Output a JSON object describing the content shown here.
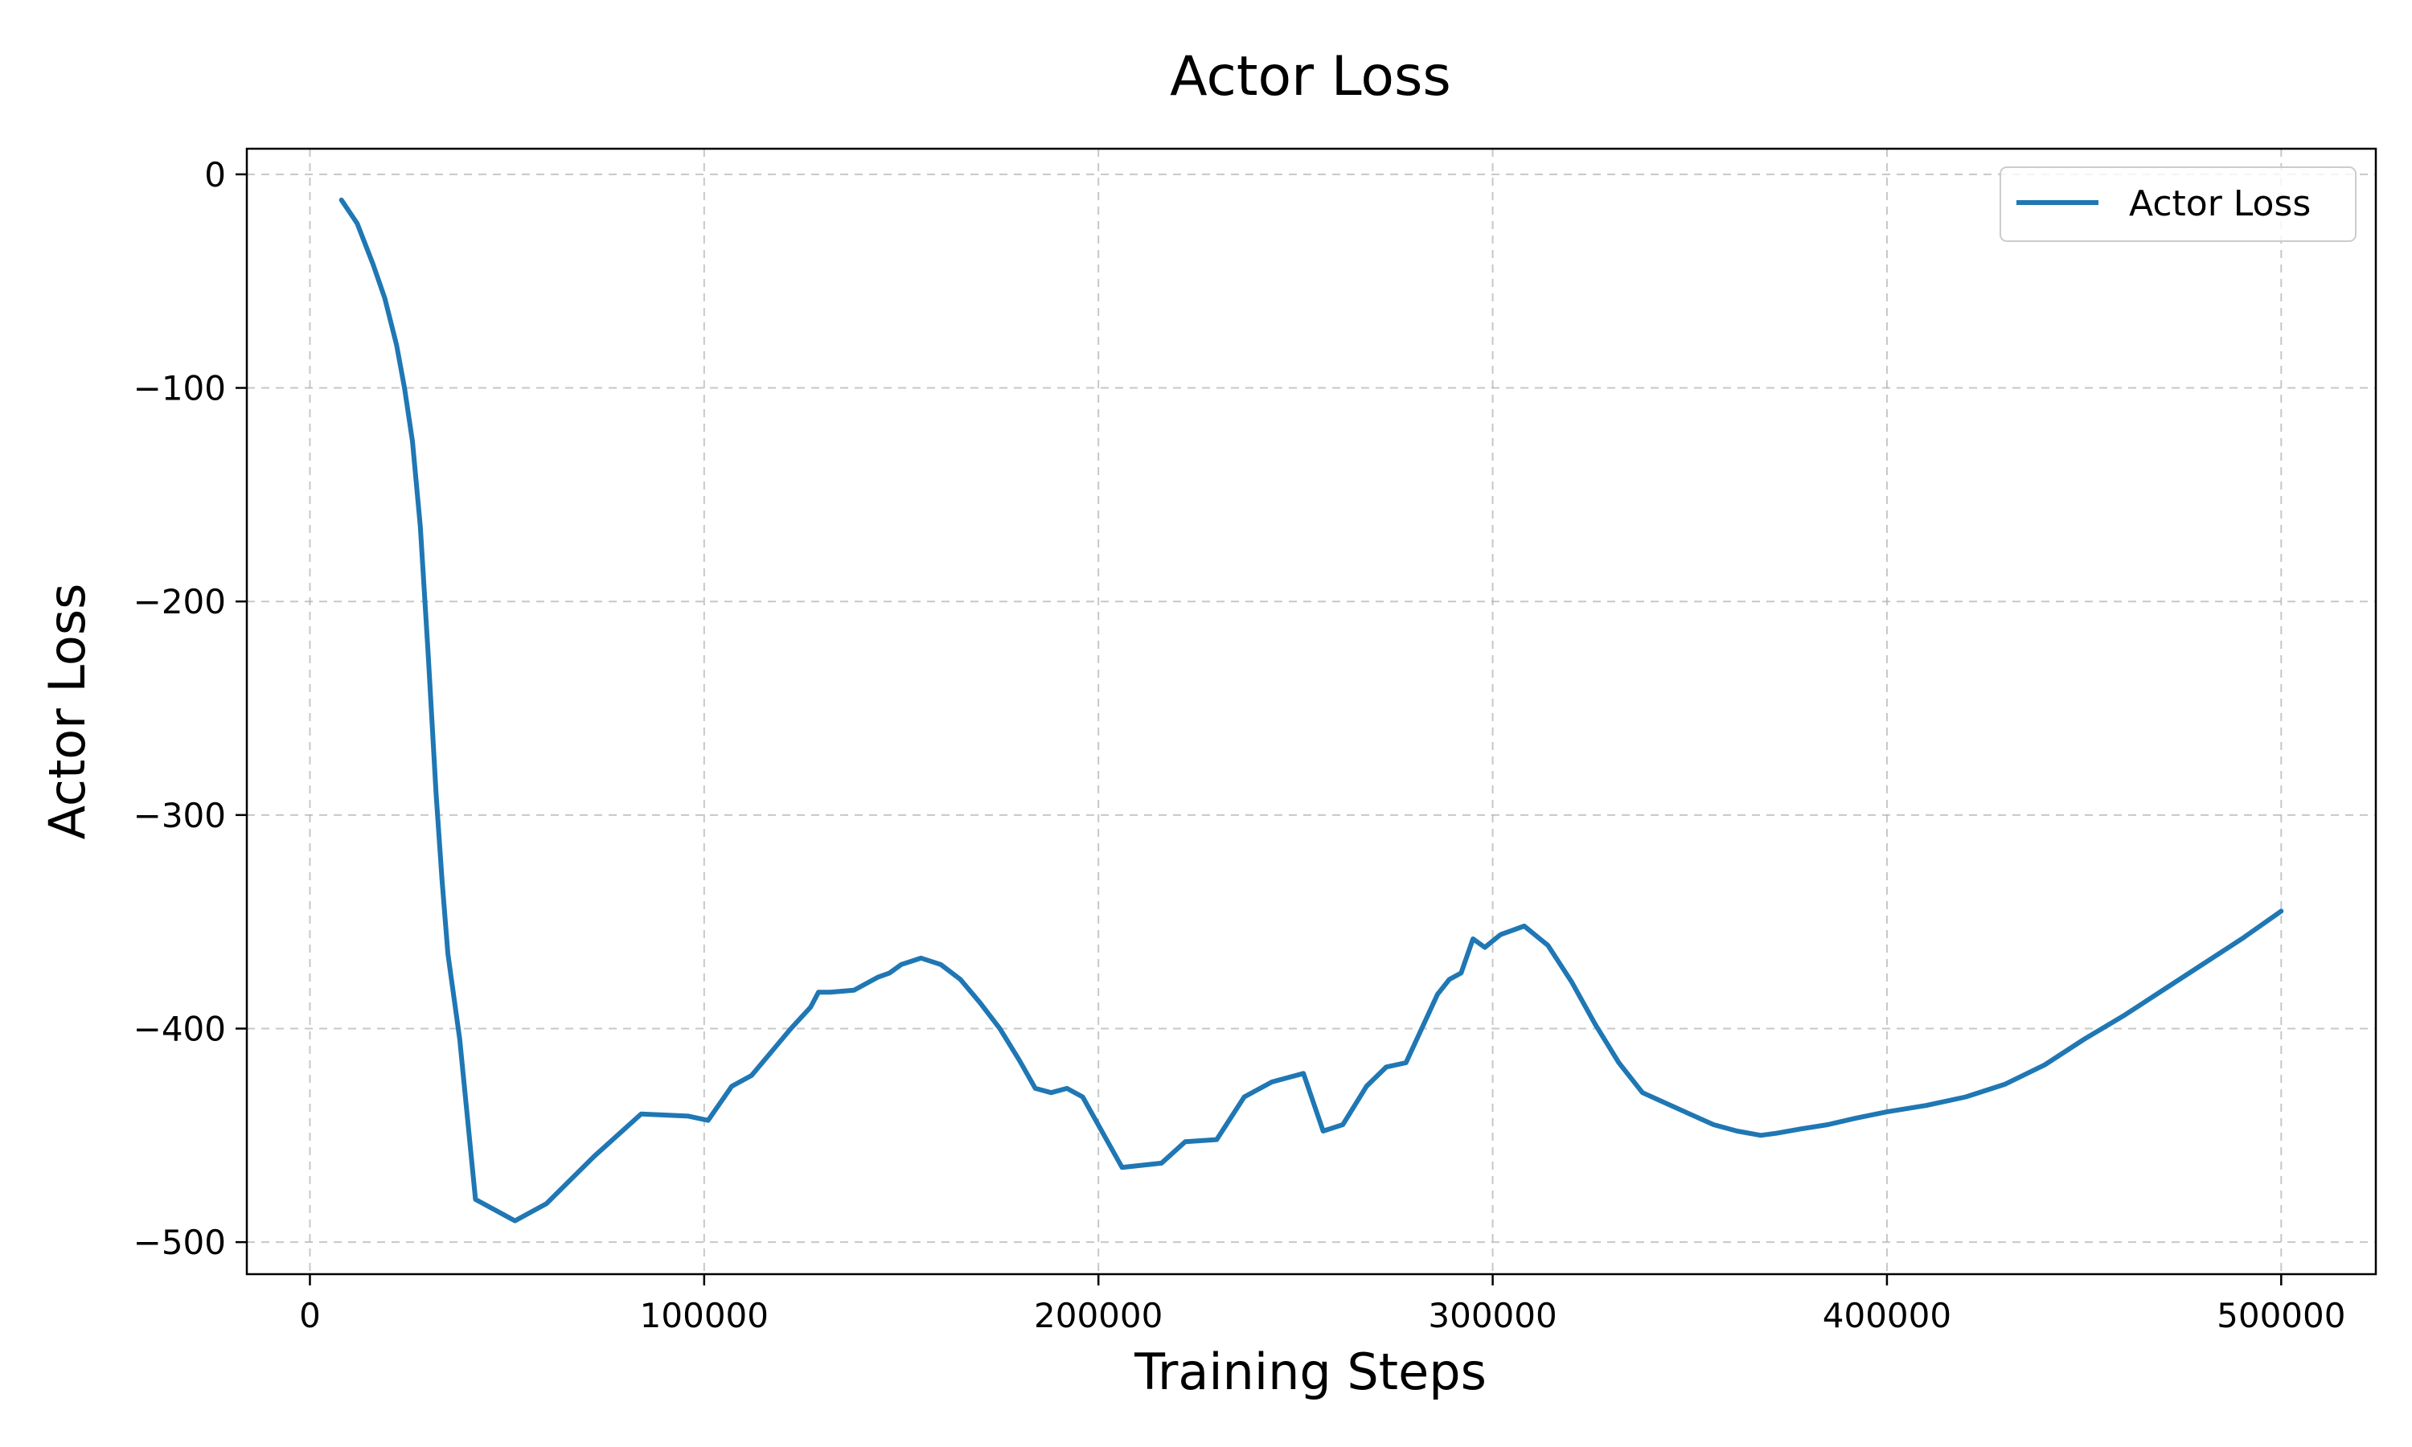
{
  "chart_data": {
    "type": "line",
    "title": "Actor Loss",
    "xlabel": "Training Steps",
    "ylabel": "Actor Loss",
    "xlim": [
      -16000,
      524000
    ],
    "ylim": [
      -515,
      12
    ],
    "xticks": [
      0,
      100000,
      200000,
      300000,
      400000,
      500000
    ],
    "xtick_labels": [
      "0",
      "100000",
      "200000",
      "300000",
      "400000",
      "500000"
    ],
    "yticks": [
      0,
      -100,
      -200,
      -300,
      -400,
      -500
    ],
    "ytick_labels": [
      "0",
      "−100",
      "−200",
      "−300",
      "−400",
      "−500"
    ],
    "grid": true,
    "legend_position": "top-right",
    "series": [
      {
        "name": "Actor Loss",
        "color": "#1f77b4",
        "x": [
          8000,
          12000,
          16000,
          19000,
          22000,
          24000,
          26000,
          28000,
          30000,
          32000,
          33500,
          35000,
          38000,
          42000,
          52000,
          60000,
          72000,
          84000,
          96000,
          101000,
          107000,
          112000,
          122000,
          127000,
          129000,
          132000,
          138000,
          144000,
          147000,
          150000,
          155000,
          160000,
          165000,
          170000,
          175000,
          180000,
          184000,
          188000,
          192000,
          196000,
          206000,
          216000,
          222000,
          230000,
          237000,
          244000,
          252000,
          257000,
          262000,
          268000,
          273000,
          278000,
          282000,
          286000,
          289000,
          292000,
          295000,
          298000,
          302000,
          308000,
          314000,
          320000,
          326000,
          332000,
          338000,
          344000,
          350000,
          356000,
          362000,
          368000,
          372000,
          378000,
          385000,
          392000,
          400000,
          410000,
          420000,
          430000,
          440000,
          450000,
          460000,
          470000,
          480000,
          490000,
          500000
        ],
        "y": [
          -12,
          -23,
          -42,
          -58,
          -80,
          -100,
          -125,
          -165,
          -225,
          -290,
          -330,
          -365,
          -405,
          -480,
          -490,
          -482,
          -460,
          -440,
          -441,
          -443,
          -427,
          -422,
          -400,
          -390,
          -383,
          -383,
          -382,
          -376,
          -374,
          -370,
          -367,
          -370,
          -377,
          -388,
          -400,
          -415,
          -428,
          -430,
          -428,
          -432,
          -465,
          -463,
          -453,
          -452,
          -432,
          -425,
          -421,
          -448,
          -445,
          -427,
          -418,
          -416,
          -400,
          -384,
          -377,
          -374,
          -358,
          -362,
          -356,
          -352,
          -361,
          -378,
          -398,
          -416,
          -430,
          -435,
          -440,
          -445,
          -448,
          -450,
          -449,
          -447,
          -445,
          -442,
          -439,
          -436,
          -432,
          -426,
          -417,
          -405,
          -394,
          -382,
          -370,
          -358,
          -345
        ]
      }
    ]
  }
}
